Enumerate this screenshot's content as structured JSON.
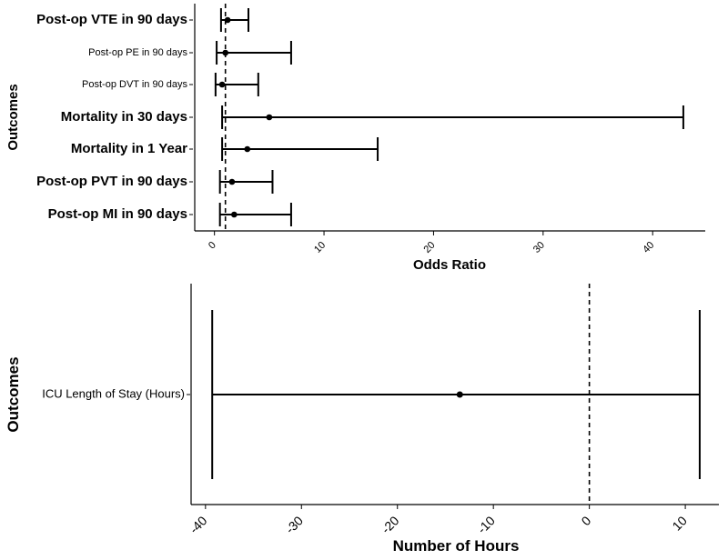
{
  "chart_data": [
    {
      "type": "forest",
      "title": "",
      "xlabel": "Odds Ratio",
      "ylabel": "Outcomes",
      "xlim": [
        -1.8,
        44.8
      ],
      "xticks": [
        0,
        10,
        20,
        30,
        40
      ],
      "reference_value": 1,
      "series": [
        {
          "label": "Post-op VTE in 90 days",
          "estimate": 1.2,
          "lower": 0.6,
          "upper": 3.1,
          "emphasis": "large"
        },
        {
          "label": "Post-op PE in 90 days",
          "estimate": 1.0,
          "lower": 0.2,
          "upper": 7.0,
          "emphasis": "small"
        },
        {
          "label": "Post-op DVT in 90 days",
          "estimate": 0.7,
          "lower": 0.1,
          "upper": 4.0,
          "emphasis": "small"
        },
        {
          "label": "Mortality in 30 days",
          "estimate": 5.0,
          "lower": 0.7,
          "upper": 42.8,
          "emphasis": "large"
        },
        {
          "label": "Mortality in 1 Year",
          "estimate": 3.0,
          "lower": 0.7,
          "upper": 14.9,
          "emphasis": "large"
        },
        {
          "label": "Post-op PVT in 90 days",
          "estimate": 1.6,
          "lower": 0.5,
          "upper": 5.3,
          "emphasis": "large"
        },
        {
          "label": "Post-op MI in 90 days",
          "estimate": 1.8,
          "lower": 0.5,
          "upper": 7.0,
          "emphasis": "large"
        }
      ]
    },
    {
      "type": "forest",
      "title": "",
      "xlabel": "Number of Hours",
      "ylabel": "Outcomes",
      "xlim": [
        -41.5,
        13.5
      ],
      "xticks": [
        -40,
        -30,
        -20,
        -10,
        0,
        10
      ],
      "reference_value": 0,
      "series": [
        {
          "label": "ICU Length of Stay (Hours)",
          "estimate": -13.5,
          "lower": -39.3,
          "upper": 11.5,
          "emphasis": "small"
        }
      ]
    }
  ]
}
